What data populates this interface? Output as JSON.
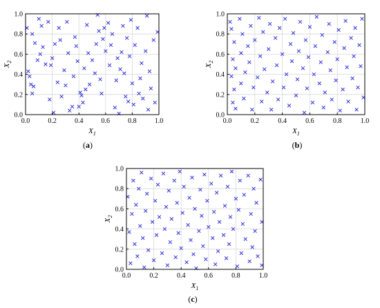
{
  "chart_data": [
    {
      "type": "scatter",
      "panel_label": {
        "open": "(",
        "letter": "a",
        "close": ")"
      },
      "xlabel": {
        "base": "X",
        "sub": "1"
      },
      "ylabel": {
        "base": "X",
        "sub": "2"
      },
      "xlim": [
        0,
        1
      ],
      "ylim": [
        0,
        1
      ],
      "xticks": [
        "0.0",
        "0.2",
        "0.4",
        "0.6",
        "0.8",
        "1.0"
      ],
      "yticks": [
        "0.0",
        "0.2",
        "0.4",
        "0.6",
        "0.8",
        "1.0"
      ],
      "grid": true,
      "marker": "x",
      "marker_color": "#3333dd",
      "points": [
        [
          0.01,
          0.86
        ],
        [
          0.02,
          0.43
        ],
        [
          0.03,
          0.38
        ],
        [
          0.04,
          0.3
        ],
        [
          0.05,
          0.8
        ],
        [
          0.05,
          0.21
        ],
        [
          0.06,
          0.28
        ],
        [
          0.07,
          0.71
        ],
        [
          0.09,
          0.54
        ],
        [
          0.1,
          0.95
        ],
        [
          0.11,
          0.6
        ],
        [
          0.12,
          0.88
        ],
        [
          0.13,
          0.67
        ],
        [
          0.15,
          0.5
        ],
        [
          0.17,
          0.92
        ],
        [
          0.18,
          0.15
        ],
        [
          0.19,
          0.49
        ],
        [
          0.2,
          0.56
        ],
        [
          0.21,
          0.02
        ],
        [
          0.22,
          0.7
        ],
        [
          0.24,
          0.32
        ],
        [
          0.25,
          0.86
        ],
        [
          0.26,
          0.74
        ],
        [
          0.27,
          0.18
        ],
        [
          0.29,
          0.44
        ],
        [
          0.3,
          0.29
        ],
        [
          0.31,
          0.92
        ],
        [
          0.32,
          0.61
        ],
        [
          0.33,
          0.04
        ],
        [
          0.35,
          0.08
        ],
        [
          0.36,
          0.38
        ],
        [
          0.37,
          0.77
        ],
        [
          0.38,
          0.68
        ],
        [
          0.39,
          0.53
        ],
        [
          0.4,
          0.08
        ],
        [
          0.41,
          0.22
        ],
        [
          0.42,
          0.19
        ],
        [
          0.43,
          0.12
        ],
        [
          0.44,
          0.46
        ],
        [
          0.45,
          0.25
        ],
        [
          0.46,
          0.89
        ],
        [
          0.47,
          0.61
        ],
        [
          0.48,
          0.3
        ],
        [
          0.5,
          0.54
        ],
        [
          0.52,
          0.41
        ],
        [
          0.53,
          0.7
        ],
        [
          0.54,
          0.99
        ],
        [
          0.55,
          0.83
        ],
        [
          0.56,
          0.35
        ],
        [
          0.57,
          0.21
        ],
        [
          0.58,
          0.75
        ],
        [
          0.59,
          0.86
        ],
        [
          0.6,
          0.63
        ],
        [
          0.62,
          0.91
        ],
        [
          0.63,
          0.49
        ],
        [
          0.64,
          0.69
        ],
        [
          0.65,
          0.8
        ],
        [
          0.67,
          0.07
        ],
        [
          0.68,
          0.34
        ],
        [
          0.69,
          0.56
        ],
        [
          0.7,
          0.01
        ],
        [
          0.71,
          0.45
        ],
        [
          0.72,
          0.62
        ],
        [
          0.73,
          0.88
        ],
        [
          0.74,
          0.41
        ],
        [
          0.75,
          0.18
        ],
        [
          0.76,
          0.76
        ],
        [
          0.77,
          0.13
        ],
        [
          0.78,
          0.58
        ],
        [
          0.79,
          0.94
        ],
        [
          0.8,
          0.31
        ],
        [
          0.81,
          0.1
        ],
        [
          0.82,
          0.69
        ],
        [
          0.84,
          0.86
        ],
        [
          0.85,
          0.21
        ],
        [
          0.86,
          0.36
        ],
        [
          0.87,
          0.51
        ],
        [
          0.88,
          0.16
        ],
        [
          0.9,
          0.63
        ],
        [
          0.91,
          0.98
        ],
        [
          0.92,
          0.05
        ],
        [
          0.93,
          0.43
        ],
        [
          0.94,
          0.26
        ],
        [
          0.96,
          0.74
        ],
        [
          0.97,
          0.12
        ],
        [
          0.99,
          0.82
        ]
      ]
    },
    {
      "type": "scatter",
      "panel_label": {
        "open": "(",
        "letter": "b",
        "close": ")"
      },
      "xlabel": {
        "base": "X",
        "sub": "1"
      },
      "ylabel": {
        "base": "X",
        "sub": "2"
      },
      "xlim": [
        0,
        1
      ],
      "ylim": [
        0,
        1
      ],
      "xticks": [
        "0.0",
        "0.2",
        "0.4",
        "0.6",
        "0.8",
        "1.0"
      ],
      "yticks": [
        "0.0",
        "0.2",
        "0.4",
        "0.6",
        "0.8",
        "1.0"
      ],
      "grid": true,
      "marker": "x",
      "marker_color": "#3333dd",
      "points": [
        [
          0.02,
          0.92
        ],
        [
          0.03,
          0.85
        ],
        [
          0.03,
          0.38
        ],
        [
          0.04,
          0.12
        ],
        [
          0.04,
          0.55
        ],
        [
          0.05,
          0.72
        ],
        [
          0.05,
          0.25
        ],
        [
          0.06,
          0.46
        ],
        [
          0.06,
          0.06
        ],
        [
          0.09,
          0.95
        ],
        [
          0.1,
          0.61
        ],
        [
          0.1,
          0.31
        ],
        [
          0.11,
          0.8
        ],
        [
          0.12,
          0.16
        ],
        [
          0.13,
          0.42
        ],
        [
          0.15,
          0.68
        ],
        [
          0.16,
          0.52
        ],
        [
          0.17,
          0.88
        ],
        [
          0.18,
          0.05
        ],
        [
          0.19,
          0.27
        ],
        [
          0.2,
          0.74
        ],
        [
          0.22,
          0.37
        ],
        [
          0.23,
          0.96
        ],
        [
          0.24,
          0.58
        ],
        [
          0.25,
          0.13
        ],
        [
          0.26,
          0.82
        ],
        [
          0.27,
          0.45
        ],
        [
          0.29,
          0.22
        ],
        [
          0.3,
          0.65
        ],
        [
          0.31,
          0.9
        ],
        [
          0.32,
          0.05
        ],
        [
          0.33,
          0.33
        ],
        [
          0.35,
          0.76
        ],
        [
          0.36,
          0.49
        ],
        [
          0.37,
          0.15
        ],
        [
          0.38,
          0.86
        ],
        [
          0.4,
          0.6
        ],
        [
          0.41,
          0.27
        ],
        [
          0.42,
          0.95
        ],
        [
          0.43,
          0.4
        ],
        [
          0.45,
          0.09
        ],
        [
          0.46,
          0.7
        ],
        [
          0.47,
          0.53
        ],
        [
          0.48,
          0.81
        ],
        [
          0.5,
          0.19
        ],
        [
          0.51,
          0.35
        ],
        [
          0.52,
          0.63
        ],
        [
          0.53,
          0.92
        ],
        [
          0.55,
          0.46
        ],
        [
          0.56,
          0.02
        ],
        [
          0.57,
          0.74
        ],
        [
          0.58,
          0.26
        ],
        [
          0.59,
          0.57
        ],
        [
          0.6,
          0.87
        ],
        [
          0.62,
          0.12
        ],
        [
          0.63,
          0.4
        ],
        [
          0.64,
          0.68
        ],
        [
          0.65,
          0.97
        ],
        [
          0.67,
          0.31
        ],
        [
          0.68,
          0.52
        ],
        [
          0.69,
          0.79
        ],
        [
          0.7,
          0.07
        ],
        [
          0.71,
          0.22
        ],
        [
          0.73,
          0.62
        ],
        [
          0.74,
          0.9
        ],
        [
          0.75,
          0.44
        ],
        [
          0.76,
          0.15
        ],
        [
          0.78,
          0.72
        ],
        [
          0.79,
          0.34
        ],
        [
          0.8,
          0.55
        ],
        [
          0.81,
          0.84
        ],
        [
          0.82,
          0.04
        ],
        [
          0.84,
          0.25
        ],
        [
          0.85,
          0.66
        ],
        [
          0.86,
          0.93
        ],
        [
          0.87,
          0.47
        ],
        [
          0.88,
          0.13
        ],
        [
          0.9,
          0.76
        ],
        [
          0.91,
          0.36
        ],
        [
          0.92,
          0.58
        ],
        [
          0.93,
          0.86
        ],
        [
          0.94,
          0.05
        ],
        [
          0.95,
          0.27
        ],
        [
          0.96,
          0.69
        ],
        [
          0.97,
          0.48
        ],
        [
          0.98,
          0.95
        ],
        [
          0.99,
          0.17
        ]
      ]
    },
    {
      "type": "scatter",
      "panel_label": {
        "open": "(",
        "letter": "c",
        "close": ")"
      },
      "xlabel": {
        "base": "X",
        "sub": "1"
      },
      "ylabel": {
        "base": "X",
        "sub": "2"
      },
      "xlim": [
        0,
        1
      ],
      "ylim": [
        0,
        1
      ],
      "xticks": [
        "0.0",
        "0.2",
        "0.4",
        "0.6",
        "0.8",
        "1.0"
      ],
      "yticks": [
        "0.0",
        "0.2",
        "0.4",
        "0.6",
        "0.8",
        "1.0"
      ],
      "grid": true,
      "marker": "x",
      "marker_color": "#3333dd",
      "points": [
        [
          0.01,
          0.72
        ],
        [
          0.02,
          0.37
        ],
        [
          0.03,
          0.06
        ],
        [
          0.04,
          0.55
        ],
        [
          0.05,
          0.88
        ],
        [
          0.06,
          0.25
        ],
        [
          0.07,
          0.64
        ],
        [
          0.08,
          0.13
        ],
        [
          0.09,
          0.8
        ],
        [
          0.1,
          0.43
        ],
        [
          0.11,
          0.96
        ],
        [
          0.12,
          0.31
        ],
        [
          0.13,
          0.02
        ],
        [
          0.14,
          0.58
        ],
        [
          0.15,
          0.75
        ],
        [
          0.16,
          0.19
        ],
        [
          0.18,
          0.9
        ],
        [
          0.19,
          0.47
        ],
        [
          0.2,
          0.09
        ],
        [
          0.21,
          0.68
        ],
        [
          0.22,
          0.34
        ],
        [
          0.23,
          0.84
        ],
        [
          0.24,
          0.52
        ],
        [
          0.26,
          0.16
        ],
        [
          0.27,
          0.95
        ],
        [
          0.28,
          0.4
        ],
        [
          0.29,
          0.62
        ],
        [
          0.3,
          0.04
        ],
        [
          0.31,
          0.78
        ],
        [
          0.32,
          0.27
        ],
        [
          0.33,
          0.5
        ],
        [
          0.35,
          0.88
        ],
        [
          0.36,
          0.12
        ],
        [
          0.37,
          0.66
        ],
        [
          0.38,
          0.36
        ],
        [
          0.39,
          0.97
        ],
        [
          0.4,
          0.21
        ],
        [
          0.41,
          0.56
        ],
        [
          0.42,
          0.82
        ],
        [
          0.44,
          0.07
        ],
        [
          0.45,
          0.44
        ],
        [
          0.46,
          0.71
        ],
        [
          0.47,
          0.29
        ],
        [
          0.48,
          0.91
        ],
        [
          0.49,
          0.15
        ],
        [
          0.5,
          0.6
        ],
        [
          0.51,
          0.01
        ],
        [
          0.53,
          0.38
        ],
        [
          0.54,
          0.79
        ],
        [
          0.55,
          0.53
        ],
        [
          0.56,
          0.23
        ],
        [
          0.57,
          0.94
        ],
        [
          0.58,
          0.1
        ],
        [
          0.59,
          0.68
        ],
        [
          0.6,
          0.42
        ],
        [
          0.62,
          0.85
        ],
        [
          0.63,
          0.31
        ],
        [
          0.64,
          0.57
        ],
        [
          0.65,
          0.05
        ],
        [
          0.66,
          0.76
        ],
        [
          0.67,
          0.18
        ],
        [
          0.68,
          0.47
        ],
        [
          0.69,
          0.93
        ],
        [
          0.71,
          0.34
        ],
        [
          0.72,
          0.63
        ],
        [
          0.73,
          0.11
        ],
        [
          0.74,
          0.82
        ],
        [
          0.75,
          0.25
        ],
        [
          0.76,
          0.52
        ],
        [
          0.77,
          0.97
        ],
        [
          0.78,
          0.4
        ],
        [
          0.8,
          0.7
        ],
        [
          0.81,
          0.03
        ],
        [
          0.82,
          0.59
        ],
        [
          0.83,
          0.88
        ],
        [
          0.84,
          0.16
        ],
        [
          0.85,
          0.45
        ],
        [
          0.86,
          0.74
        ],
        [
          0.87,
          0.3
        ],
        [
          0.89,
          0.93
        ],
        [
          0.9,
          0.08
        ],
        [
          0.91,
          0.55
        ],
        [
          0.92,
          0.22
        ],
        [
          0.93,
          0.8
        ],
        [
          0.94,
          0.38
        ],
        [
          0.95,
          0.66
        ],
        [
          0.96,
          0.13
        ],
        [
          0.98,
          0.89
        ],
        [
          0.99,
          0.47
        ],
        [
          0.99,
          0.04
        ]
      ]
    }
  ]
}
